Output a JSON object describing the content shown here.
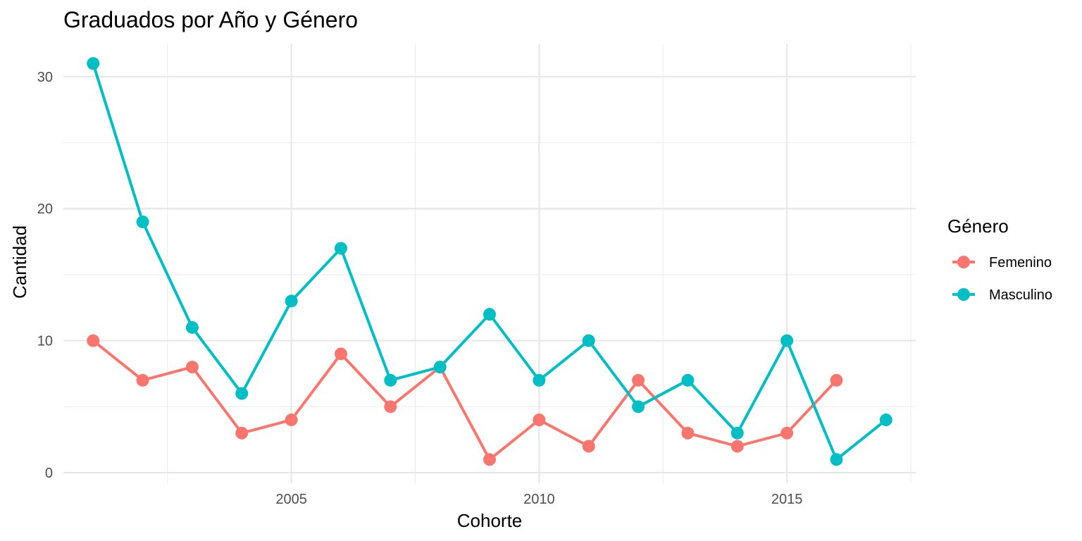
{
  "chart_data": {
    "type": "line",
    "title": "Graduados por Año y Género",
    "xlabel": "Cohorte",
    "ylabel": "Cantidad",
    "xlim": [
      2000.4,
      2017.6
    ],
    "ylim": [
      -0.8,
      32.5
    ],
    "x_ticks": [
      2005,
      2010,
      2015
    ],
    "y_ticks": [
      0,
      10,
      20,
      30
    ],
    "grid": true,
    "legend": {
      "title": "Género",
      "position": "right"
    },
    "series": [
      {
        "name": "Femenino",
        "color": "#F8766D",
        "x": [
          2001,
          2002,
          2003,
          2004,
          2005,
          2006,
          2007,
          2008,
          2009,
          2010,
          2011,
          2012,
          2013,
          2014,
          2015,
          2016
        ],
        "values": [
          10,
          7,
          8,
          3,
          4,
          9,
          5,
          8,
          1,
          4,
          2,
          7,
          3,
          2,
          3,
          7
        ]
      },
      {
        "name": "Masculino",
        "color": "#00BFC4",
        "x": [
          2001,
          2002,
          2003,
          2004,
          2005,
          2006,
          2007,
          2008,
          2009,
          2010,
          2011,
          2012,
          2013,
          2014,
          2015,
          2016,
          2017
        ],
        "values": [
          31,
          19,
          11,
          6,
          13,
          17,
          7,
          8,
          12,
          7,
          10,
          5,
          7,
          3,
          10,
          1,
          4
        ]
      }
    ]
  }
}
